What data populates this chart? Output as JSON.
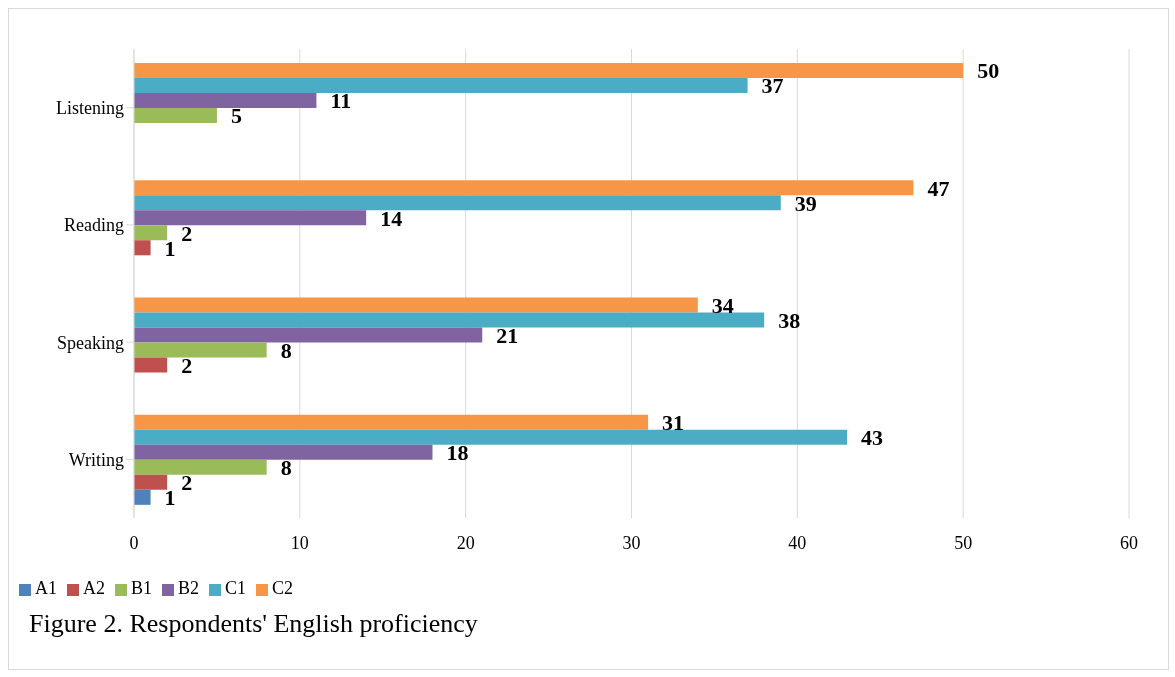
{
  "chart_data": {
    "type": "bar",
    "orientation": "horizontal",
    "categories": [
      "Listening",
      "Reading",
      "Speaking",
      "Writing"
    ],
    "series": [
      {
        "name": "C2",
        "color": "#f79646",
        "values": [
          50,
          47,
          34,
          31
        ]
      },
      {
        "name": "C1",
        "color": "#4bacc6",
        "values": [
          37,
          39,
          38,
          43
        ]
      },
      {
        "name": "B2",
        "color": "#8064a2",
        "values": [
          11,
          14,
          21,
          18
        ]
      },
      {
        "name": "B1",
        "color": "#9bbb59",
        "values": [
          5,
          2,
          8,
          8
        ]
      },
      {
        "name": "A2",
        "color": "#c0504d",
        "values": [
          null,
          1,
          2,
          2
        ]
      },
      {
        "name": "A1",
        "color": "#4f81bd",
        "values": [
          null,
          null,
          null,
          1
        ]
      }
    ],
    "xlim": [
      0,
      60
    ],
    "xticks": [
      0,
      10,
      20,
      30,
      40,
      50,
      60
    ],
    "grid": "x",
    "legend": "bottom left",
    "data_labels": true,
    "annotations": [
      "Figure 2. Respondents' English proficiency"
    ]
  }
}
